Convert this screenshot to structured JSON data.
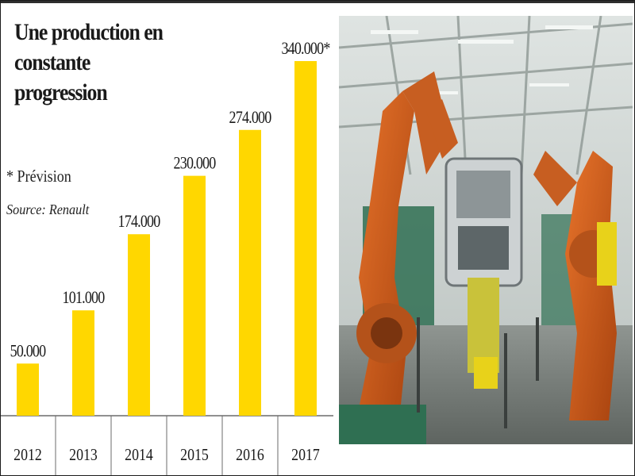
{
  "title_lines": [
    "Une production en constante",
    "progression"
  ],
  "note": "* Prévision",
  "source": "Source: Renault",
  "colors": {
    "bar": "#ffd700",
    "text": "#1a1a1a",
    "axis": "#6b6b6b"
  },
  "chart_data": {
    "type": "bar",
    "title": "Une production en constante progression",
    "categories": [
      "2012",
      "2013",
      "2014",
      "2015",
      "2016",
      "2017"
    ],
    "values": [
      50000,
      101000,
      174000,
      230000,
      274000,
      340000
    ],
    "value_labels": [
      "50.000",
      "101.000",
      "174.000",
      "230.000",
      "274.000",
      "340.000*"
    ],
    "ylim": [
      0,
      340000
    ],
    "grid": false,
    "legend": "none"
  }
}
